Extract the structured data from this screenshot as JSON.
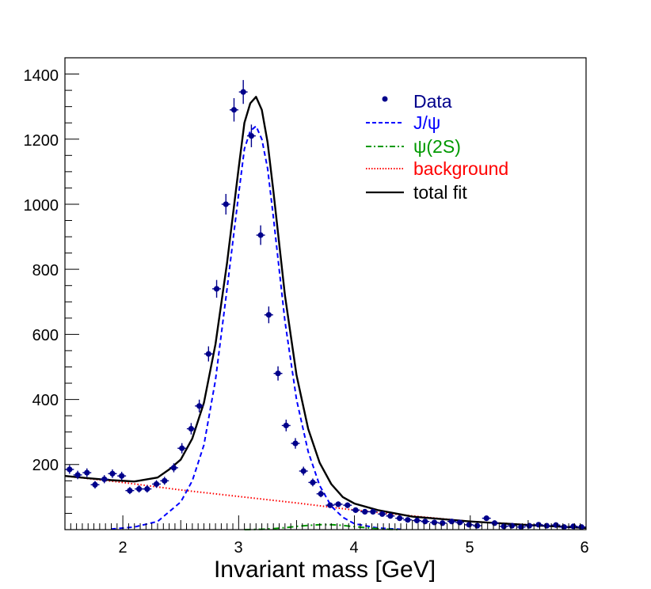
{
  "chart_data": {
    "type": "scatter",
    "title": "",
    "xlabel": "Invariant mass [GeV]",
    "ylabel": "",
    "xlim": [
      1.5,
      6.0
    ],
    "ylim": [
      0,
      1450
    ],
    "x_ticks": [
      2,
      3,
      4,
      5,
      6
    ],
    "x_tick_labels": [
      "2",
      "3",
      "4",
      "5",
      "6"
    ],
    "y_ticks": [
      200,
      400,
      600,
      800,
      1000,
      1200,
      1400
    ],
    "y_tick_labels": [
      "200",
      "400",
      "600",
      "800",
      "1000",
      "1200",
      "1400"
    ],
    "colors": {
      "data": "#00008b",
      "jpsi": "#0000ff",
      "psi2s": "#009900",
      "background": "#ff0000",
      "total": "#000000"
    },
    "legend": {
      "position": "top-right",
      "entries": [
        {
          "label": "Data",
          "style": "marker",
          "color": "#00008b"
        },
        {
          "label": "J/ψ",
          "style": "dashed",
          "color": "#0000ff"
        },
        {
          "label": "ψ(2S)",
          "style": "dash-dot",
          "color": "#009900"
        },
        {
          "label": "background",
          "style": "dotted",
          "color": "#ff0000"
        },
        {
          "label": "total fit",
          "style": "solid",
          "color": "#000000"
        }
      ]
    },
    "data_points": {
      "bin_width": 0.075,
      "x": [
        1.54,
        1.61,
        1.69,
        1.76,
        1.84,
        1.91,
        1.99,
        2.06,
        2.14,
        2.21,
        2.29,
        2.36,
        2.44,
        2.51,
        2.59,
        2.66,
        2.74,
        2.81,
        2.89,
        2.96,
        3.04,
        3.11,
        3.19,
        3.26,
        3.34,
        3.41,
        3.49,
        3.56,
        3.64,
        3.71,
        3.79,
        3.86,
        3.94,
        4.01,
        4.09,
        4.16,
        4.24,
        4.31,
        4.39,
        4.46,
        4.54,
        4.61,
        4.69,
        4.76,
        4.84,
        4.91,
        4.99,
        5.06,
        5.14,
        5.21,
        5.29,
        5.36,
        5.44,
        5.51,
        5.59,
        5.66,
        5.74,
        5.81,
        5.89,
        5.96
      ],
      "y": [
        185,
        168,
        175,
        138,
        155,
        172,
        165,
        120,
        125,
        125,
        140,
        150,
        190,
        250,
        310,
        380,
        540,
        740,
        1000,
        1290,
        1345,
        1210,
        905,
        660,
        480,
        320,
        265,
        180,
        145,
        110,
        75,
        78,
        75,
        60,
        55,
        55,
        48,
        42,
        35,
        30,
        28,
        25,
        22,
        20,
        25,
        22,
        15,
        12,
        35,
        20,
        10,
        12,
        8,
        12,
        15,
        12,
        14,
        8,
        10,
        8
      ]
    },
    "curves": [
      {
        "name": "J/ψ",
        "style": "dashed",
        "color": "#0000ff",
        "x": [
          1.9,
          2.1,
          2.3,
          2.5,
          2.6,
          2.7,
          2.8,
          2.9,
          3.0,
          3.05,
          3.1,
          3.15,
          3.2,
          3.25,
          3.3,
          3.4,
          3.5,
          3.6,
          3.7,
          3.8,
          3.9,
          4.0,
          4.2,
          4.4
        ],
        "y": [
          2,
          8,
          25,
          85,
          150,
          260,
          460,
          740,
          1030,
          1170,
          1225,
          1240,
          1200,
          1110,
          960,
          640,
          400,
          240,
          135,
          72,
          38,
          18,
          5,
          1
        ]
      },
      {
        "name": "ψ(2S)",
        "style": "dash-dot",
        "color": "#009900",
        "x": [
          3.05,
          3.2,
          3.3,
          3.4,
          3.5,
          3.6,
          3.7,
          3.8,
          3.9,
          4.0,
          4.1,
          4.2,
          4.3,
          4.4
        ],
        "y": [
          0,
          1,
          3,
          6,
          10,
          13,
          15,
          15,
          13,
          9,
          6,
          3,
          1,
          0
        ]
      },
      {
        "name": "background",
        "style": "dotted",
        "color": "#ff0000",
        "x": [
          1.5,
          2.0,
          2.5,
          3.0,
          3.5,
          4.0,
          4.5,
          5.0,
          5.5,
          6.0
        ],
        "y": [
          165,
          145,
          122,
          102,
          82,
          60,
          42,
          25,
          15,
          5
        ]
      },
      {
        "name": "total fit",
        "style": "solid",
        "color": "#000000",
        "x": [
          1.5,
          1.7,
          1.9,
          2.1,
          2.3,
          2.4,
          2.5,
          2.6,
          2.7,
          2.8,
          2.9,
          3.0,
          3.05,
          3.1,
          3.15,
          3.2,
          3.25,
          3.3,
          3.4,
          3.5,
          3.6,
          3.7,
          3.8,
          3.9,
          4.0,
          4.2,
          4.5,
          5.0,
          5.5,
          6.0
        ],
        "y": [
          165,
          158,
          152,
          148,
          160,
          185,
          215,
          280,
          390,
          570,
          820,
          1110,
          1250,
          1310,
          1330,
          1290,
          1190,
          1040,
          720,
          475,
          310,
          205,
          140,
          100,
          80,
          60,
          40,
          25,
          14,
          5
        ]
      }
    ]
  }
}
